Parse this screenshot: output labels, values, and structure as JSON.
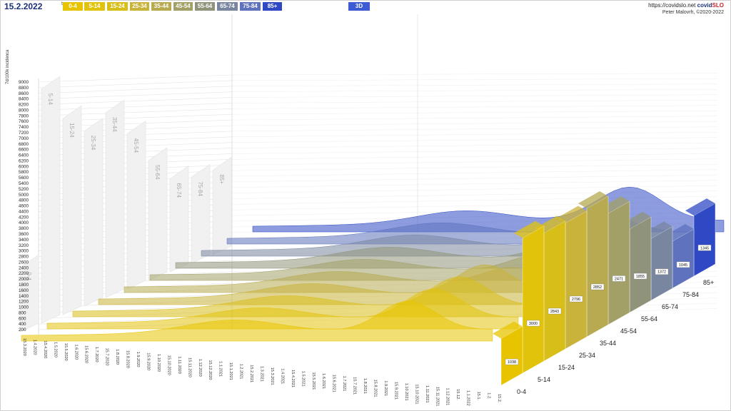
{
  "header": {
    "date": "15.2.2022",
    "date_suffix": "tor",
    "view_3d": "3D",
    "source_url": "https://covidslo.net",
    "brand_covid": "covid",
    "brand_slo": "SLO",
    "author": "Peter Malovrh, ©2020-2022"
  },
  "age_groups": [
    {
      "label": "0-4",
      "color": "#e8c400"
    },
    {
      "label": "5-14",
      "color": "#e2c30c"
    },
    {
      "label": "15-24",
      "color": "#d8be18"
    },
    {
      "label": "25-34",
      "color": "#c9b33a"
    },
    {
      "label": "35-44",
      "color": "#b7aa50"
    },
    {
      "label": "45-54",
      "color": "#a3a067"
    },
    {
      "label": "55-64",
      "color": "#8f9379"
    },
    {
      "label": "65-74",
      "color": "#7886a0"
    },
    {
      "label": "75-84",
      "color": "#5e72bd"
    },
    {
      "label": "85+",
      "color": "#2f49c4"
    }
  ],
  "chart_data": {
    "type": "area",
    "ylabel": "7d/100k incidenca",
    "yticks": [
      200,
      400,
      600,
      800,
      1000,
      1200,
      1400,
      1600,
      1800,
      2000,
      2200,
      2400,
      2600,
      2800,
      3000,
      3200,
      3400,
      3600,
      3800,
      4000,
      4200,
      4400,
      4600,
      4800,
      5000,
      5200,
      5400,
      5600,
      5800,
      6000,
      6200,
      6400,
      6600,
      6800,
      7000,
      7200,
      7400,
      7600,
      7800,
      8000,
      8200,
      8400,
      8600,
      8800,
      9000
    ],
    "ylim": [
      0,
      9000
    ],
    "x_dates": [
      "15.3.2020",
      "1.4.2020",
      "15.4.2020",
      "1.5.2020",
      "15.5.2020",
      "1.6.2020",
      "15.6.2020",
      "1.7.2020",
      "15.7.2020",
      "1.8.2020",
      "15.8.2020",
      "1.9.2020",
      "15.9.2020",
      "1.10.2020",
      "15.10.2020",
      "1.11.2020",
      "15.11.2020",
      "1.12.2020",
      "15.12.2020",
      "1.1.2021",
      "15.1.2021",
      "1.2.2021",
      "15.2.2021",
      "1.3.2021",
      "15.3.2021",
      "1.4.2021",
      "15.4.2021",
      "1.5.2021",
      "15.5.2021",
      "1.6.2021",
      "15.6.2021",
      "1.7.2021",
      "15.7.2021",
      "1.8.2021",
      "15.8.2021",
      "1.9.2021",
      "15.9.2021",
      "1.10.2021",
      "15.10.2021",
      "1.11.2021",
      "15.11.2021",
      "1.12.2021",
      "15.12.",
      "1.1.2022",
      "15.1.",
      "1.2.",
      "15.2."
    ],
    "series": [
      {
        "name": "0-4",
        "current": 1038,
        "back_max": 2400
      },
      {
        "name": "5-14",
        "current": 3000,
        "back_max": 8600
      },
      {
        "name": "15-24",
        "current": 2843,
        "back_max": 7400
      },
      {
        "name": "25-34",
        "current": 2796,
        "back_max": 6800
      },
      {
        "name": "35-44",
        "current": 2852,
        "back_max": 7300
      },
      {
        "name": "45-54",
        "current": 2471,
        "back_max": 6400
      },
      {
        "name": "55-64",
        "current": 1855,
        "back_max": 5300
      },
      {
        "name": "65-74",
        "current": 1372,
        "back_max": 4500
      },
      {
        "name": "75-84",
        "current": 1045,
        "back_max": 4400
      },
      {
        "name": "85+",
        "current": 1345,
        "back_max": 4500
      }
    ]
  }
}
